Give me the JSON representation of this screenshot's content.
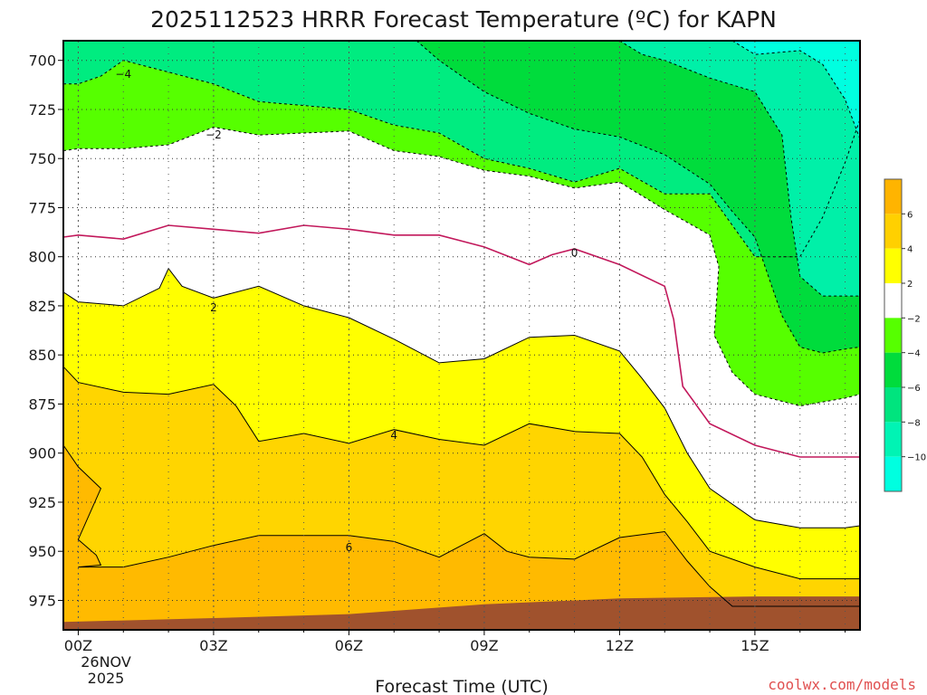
{
  "chart_data": {
    "type": "heatmap",
    "title": "2025112523 HRRR Forecast Temperature (ºC) for KAPN",
    "xlabel": "Forecast Time (UTC)",
    "ylabel": "",
    "xlim": [
      -0.33,
      17.33
    ],
    "ylim": [
      990,
      690
    ],
    "y_ticks": [
      700,
      725,
      750,
      775,
      800,
      825,
      850,
      875,
      900,
      925,
      950,
      975
    ],
    "y_tick_labels": [
      "700",
      "725",
      "750",
      "775",
      "800",
      "825",
      "850",
      "875",
      "900",
      "925",
      "950",
      "975"
    ],
    "x_ticks": [
      0,
      3,
      6,
      9,
      12,
      15
    ],
    "x_tick_labels": [
      "00Z",
      "03Z",
      "06Z",
      "09Z",
      "12Z",
      "15Z"
    ],
    "date_line1": "26NOV",
    "date_line2": "2025",
    "grid": true,
    "legend_position": "right",
    "colorbar": {
      "labels": [
        "6",
        "4",
        "2",
        "−2",
        "−4",
        "−6",
        "−8",
        "−10"
      ],
      "colors": [
        "#ffb400",
        "#ffd000",
        "#ffff00",
        "#ffffff",
        "#56ff00",
        "#00dc3c",
        "#00e47e",
        "#00f4b4",
        "#00ffe0"
      ]
    },
    "contour_labels": [
      {
        "text": "−4",
        "t": 1.0,
        "p": 707
      },
      {
        "text": "−2",
        "t": 3.0,
        "p": 738
      },
      {
        "text": "0",
        "t": 11.0,
        "p": 798
      },
      {
        "text": "2",
        "t": 3.0,
        "p": 826
      },
      {
        "text": "4",
        "t": 7.0,
        "p": 891
      },
      {
        "text": "6",
        "t": 6.0,
        "p": 948
      }
    ],
    "isotherms": {
      "m4": [
        [
          -0.33,
          712
        ],
        [
          0,
          712
        ],
        [
          0.5,
          708
        ],
        [
          1,
          700
        ],
        [
          2,
          706
        ],
        [
          3,
          712
        ],
        [
          4,
          721
        ],
        [
          5,
          723
        ],
        [
          6,
          725
        ],
        [
          7,
          733
        ],
        [
          8,
          737
        ],
        [
          9,
          750
        ],
        [
          10,
          755
        ],
        [
          11,
          762
        ],
        [
          12,
          755
        ],
        [
          13,
          768
        ],
        [
          14,
          768
        ],
        [
          15,
          800
        ],
        [
          16,
          800
        ],
        [
          16.5,
          780
        ],
        [
          17,
          752
        ],
        [
          17.33,
          730
        ]
      ],
      "m2": [
        [
          -0.33,
          746
        ],
        [
          0,
          745
        ],
        [
          1,
          745
        ],
        [
          2,
          743
        ],
        [
          3,
          734
        ],
        [
          4,
          738
        ],
        [
          5,
          737
        ],
        [
          6,
          736
        ],
        [
          7,
          746
        ],
        [
          8,
          749
        ],
        [
          9,
          756
        ],
        [
          10,
          759
        ],
        [
          11,
          765
        ],
        [
          12,
          762
        ],
        [
          13,
          776
        ],
        [
          14,
          789
        ],
        [
          14.2,
          805
        ],
        [
          14.1,
          840
        ],
        [
          14.5,
          859
        ],
        [
          15,
          870
        ],
        [
          16,
          876
        ],
        [
          17,
          872
        ],
        [
          17.33,
          870
        ]
      ],
      "p0": [
        [
          -0.33,
          790
        ],
        [
          0,
          789
        ],
        [
          1,
          791
        ],
        [
          2,
          784
        ],
        [
          3,
          786
        ],
        [
          4,
          788
        ],
        [
          5,
          784
        ],
        [
          6,
          786
        ],
        [
          7,
          789
        ],
        [
          8,
          789
        ],
        [
          9,
          795
        ],
        [
          10,
          804
        ],
        [
          10.5,
          799
        ],
        [
          11,
          796
        ],
        [
          12,
          804
        ],
        [
          13,
          815
        ],
        [
          13.2,
          832
        ],
        [
          13.4,
          866
        ],
        [
          14,
          885
        ],
        [
          15,
          896
        ],
        [
          16,
          902
        ],
        [
          17,
          902
        ],
        [
          17.33,
          902
        ]
      ],
      "p2": [
        [
          -0.33,
          818
        ],
        [
          0,
          823
        ],
        [
          1,
          825
        ],
        [
          1.8,
          816
        ],
        [
          2,
          806
        ],
        [
          2.3,
          815
        ],
        [
          3,
          821
        ],
        [
          4,
          815
        ],
        [
          5,
          825
        ],
        [
          6,
          831
        ],
        [
          7,
          842
        ],
        [
          8,
          854
        ],
        [
          9,
          852
        ],
        [
          10,
          841
        ],
        [
          11,
          840
        ],
        [
          12,
          848
        ],
        [
          12.5,
          862
        ],
        [
          13,
          877
        ],
        [
          13.5,
          900
        ],
        [
          14,
          918
        ],
        [
          15,
          934
        ],
        [
          16,
          938
        ],
        [
          17,
          938
        ],
        [
          17.33,
          937
        ]
      ],
      "p4": [
        [
          -0.33,
          856
        ],
        [
          0,
          864
        ],
        [
          1,
          869
        ],
        [
          2,
          870
        ],
        [
          3,
          865
        ],
        [
          3.5,
          876
        ],
        [
          4,
          894
        ],
        [
          5,
          890
        ],
        [
          6,
          895
        ],
        [
          7,
          888
        ],
        [
          8,
          893
        ],
        [
          9,
          896
        ],
        [
          10,
          885
        ],
        [
          11,
          889
        ],
        [
          12,
          890
        ],
        [
          12.5,
          902
        ],
        [
          13,
          921
        ],
        [
          13.5,
          935
        ],
        [
          14,
          950
        ],
        [
          15,
          958
        ],
        [
          16,
          964
        ],
        [
          17,
          964
        ],
        [
          17.33,
          964
        ]
      ],
      "p6": [
        [
          -0.33,
          896
        ],
        [
          0,
          907
        ],
        [
          0.5,
          918
        ],
        [
          0,
          944
        ],
        [
          0.4,
          952
        ],
        [
          0.5,
          957
        ],
        [
          0,
          958
        ],
        [
          1,
          958
        ],
        [
          2,
          953
        ],
        [
          3,
          947
        ],
        [
          4,
          942
        ],
        [
          5,
          942
        ],
        [
          6,
          942
        ],
        [
          7,
          945
        ],
        [
          8,
          953
        ],
        [
          9,
          941
        ],
        [
          9.5,
          950
        ],
        [
          10,
          953
        ],
        [
          11,
          954
        ],
        [
          12,
          943
        ],
        [
          13,
          940
        ],
        [
          13.5,
          955
        ],
        [
          14,
          968
        ],
        [
          14.5,
          978
        ],
        [
          17.33,
          978
        ]
      ]
    },
    "isotherm_values": {
      "m4": -4,
      "m2": -2,
      "p0": 0,
      "p2": 2,
      "p4": 4,
      "p6": 6
    },
    "extra_isotherms": [
      [
        [
          7.5,
          690
        ],
        [
          8,
          700
        ],
        [
          9,
          716
        ],
        [
          10,
          727
        ],
        [
          11,
          735
        ],
        [
          12,
          739
        ],
        [
          13,
          748
        ],
        [
          14,
          763
        ],
        [
          14.5,
          777
        ],
        [
          15,
          790
        ],
        [
          15.3,
          810
        ],
        [
          15.6,
          830
        ],
        [
          16,
          846
        ],
        [
          16.5,
          849
        ],
        [
          17,
          847
        ],
        [
          17.33,
          846
        ]
      ],
      [
        [
          12,
          690
        ],
        [
          12.5,
          697
        ],
        [
          13,
          700
        ],
        [
          14,
          709
        ],
        [
          15,
          716
        ],
        [
          15.6,
          738
        ],
        [
          15.8,
          780
        ],
        [
          16,
          810
        ],
        [
          16.5,
          820
        ],
        [
          17,
          820
        ],
        [
          17.33,
          820
        ]
      ],
      [
        [
          14.5,
          690
        ],
        [
          15,
          697
        ],
        [
          16,
          695
        ],
        [
          16.5,
          702
        ],
        [
          17,
          720
        ],
        [
          17.33,
          740
        ]
      ]
    ],
    "ground": [
      [
        -0.33,
        986
      ],
      [
        3,
        984
      ],
      [
        6,
        982
      ],
      [
        9,
        977
      ],
      [
        12,
        974
      ],
      [
        15,
        973
      ],
      [
        17.33,
        973
      ]
    ]
  },
  "credit": "coolwx.com/models"
}
